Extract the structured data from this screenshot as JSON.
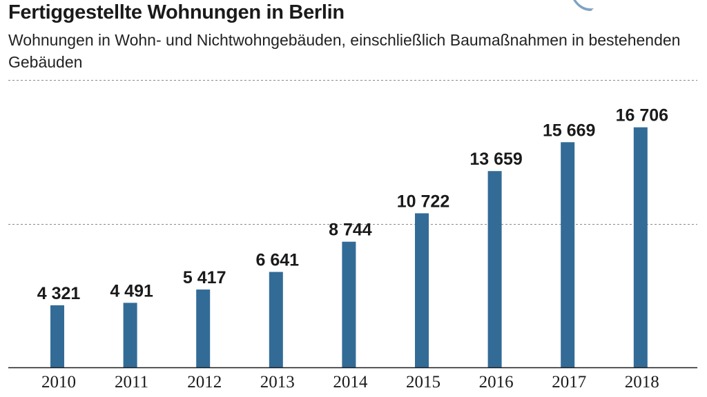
{
  "title": "Fertiggestellte Wohnungen in Berlin",
  "subtitle": "Wohnungen in Wohn- und Nichtwohngebäuden, einschließlich Baumaßnahmen in bestehenden Gebäuden",
  "colors": {
    "bar": "#336b97",
    "text": "#1a1a1a",
    "gridline": "#888888",
    "corner_mark": "#7ea2c4"
  },
  "chart_data": {
    "type": "bar",
    "title": "Fertiggestellte Wohnungen in Berlin",
    "subtitle": "Wohnungen in Wohn- und Nichtwohngebäuden, einschließlich Baumaßnahmen in bestehenden Gebäuden",
    "xlabel": "",
    "ylabel": "",
    "categories": [
      "2010",
      "2011",
      "2012",
      "2013",
      "2014",
      "2015",
      "2016",
      "2017",
      "2018"
    ],
    "values": [
      4321,
      4491,
      5417,
      6641,
      8744,
      10722,
      13659,
      15669,
      16706
    ],
    "value_labels": [
      "4 321",
      "4 491",
      "5 417",
      "6 641",
      "8 744",
      "10 722",
      "13 659",
      "15 669",
      "16 706"
    ],
    "ylim": [
      0,
      20000
    ],
    "gridlines": [
      10000,
      20000
    ],
    "grid": true,
    "legend": "none"
  }
}
